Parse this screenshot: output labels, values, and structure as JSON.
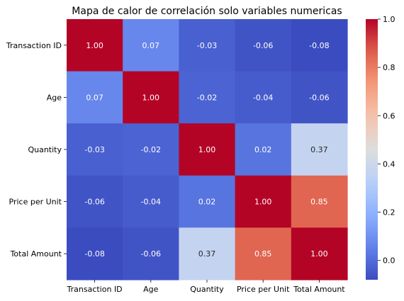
{
  "chart_data": {
    "type": "heatmap",
    "title": "Mapa de calor de correlación solo variables numericas",
    "x_labels": [
      "Transaction ID",
      "Age",
      "Quantity",
      "Price per Unit",
      "Total Amount"
    ],
    "y_labels": [
      "Transaction ID",
      "Age",
      "Quantity",
      "Price per Unit",
      "Total Amount"
    ],
    "values": [
      [
        1.0,
        0.07,
        -0.03,
        -0.06,
        -0.08
      ],
      [
        0.07,
        1.0,
        -0.02,
        -0.04,
        -0.06
      ],
      [
        -0.03,
        -0.02,
        1.0,
        0.02,
        0.37
      ],
      [
        -0.06,
        -0.04,
        0.02,
        1.0,
        0.85
      ],
      [
        -0.08,
        -0.06,
        0.37,
        0.85,
        1.0
      ]
    ],
    "value_labels": [
      [
        "1.00",
        "0.07",
        "-0.03",
        "-0.06",
        "-0.08"
      ],
      [
        "0.07",
        "1.00",
        "-0.02",
        "-0.04",
        "-0.06"
      ],
      [
        "-0.03",
        "-0.02",
        "1.00",
        "0.02",
        "0.37"
      ],
      [
        "-0.06",
        "-0.04",
        "0.02",
        "1.00",
        "0.85"
      ],
      [
        "-0.08",
        "-0.06",
        "0.37",
        "0.85",
        "1.00"
      ]
    ],
    "colormap": "coolwarm",
    "color_range": [
      -0.08,
      1.0
    ],
    "colorbar_ticks": [
      0.0,
      0.2,
      0.4,
      0.6,
      0.8,
      1.0
    ],
    "colorbar_tick_labels": [
      "0.0",
      "0.2",
      "0.4",
      "0.6",
      "0.8",
      "1.0"
    ],
    "grid": false,
    "legend": "colorbar-right"
  }
}
